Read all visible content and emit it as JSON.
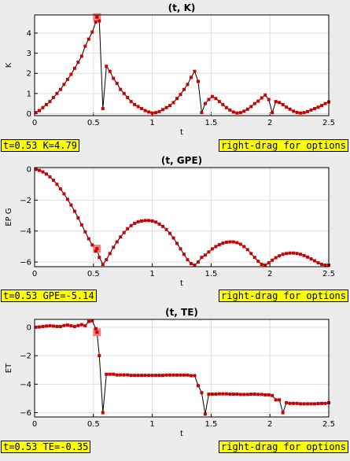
{
  "status": {
    "k_readout": "t=0.53  K=4.79",
    "gpe_readout": "t=0.53  GPE=-5.14",
    "te_readout": "t=0.53  TE=-0.35",
    "hint": "right-drag for options"
  },
  "colors": {
    "marker": "#cc0000",
    "highlight": "#f08080",
    "line": "#000000",
    "grid": "#dddddd",
    "status_bg": "#ffff00"
  },
  "chart_data": [
    {
      "type": "line",
      "title": "(t, K)",
      "xlabel": "t",
      "ylabel": "K",
      "xlim": [
        0,
        2.5
      ],
      "ylim": [
        -0.1,
        4.9
      ],
      "xticks": [
        "0",
        "0.5",
        "1",
        "1.5",
        "2",
        "2.5"
      ],
      "xtick_values": [
        0,
        0.5,
        1,
        1.5,
        2,
        2.5
      ],
      "yticks": [
        "0",
        "1",
        "2",
        "3",
        "4"
      ],
      "ytick_values": [
        0,
        1,
        2,
        3,
        4
      ],
      "grid": true,
      "highlight": {
        "x": 0.53,
        "y": 4.79
      },
      "x": [
        0.01,
        0.04,
        0.07,
        0.1,
        0.13,
        0.16,
        0.19,
        0.22,
        0.25,
        0.28,
        0.31,
        0.34,
        0.37,
        0.4,
        0.43,
        0.46,
        0.49,
        0.52,
        0.53,
        0.55,
        0.58,
        0.61,
        0.64,
        0.67,
        0.7,
        0.73,
        0.76,
        0.79,
        0.82,
        0.85,
        0.88,
        0.91,
        0.94,
        0.97,
        1.0,
        1.03,
        1.06,
        1.09,
        1.12,
        1.15,
        1.18,
        1.21,
        1.24,
        1.27,
        1.3,
        1.33,
        1.36,
        1.39,
        1.42,
        1.45,
        1.48,
        1.51,
        1.54,
        1.57,
        1.6,
        1.63,
        1.66,
        1.69,
        1.72,
        1.75,
        1.78,
        1.81,
        1.84,
        1.87,
        1.9,
        1.93,
        1.96,
        1.99,
        2.02,
        2.05,
        2.08,
        2.11,
        2.14,
        2.17,
        2.2,
        2.23,
        2.26,
        2.29,
        2.32,
        2.35,
        2.38,
        2.41,
        2.44,
        2.47,
        2.5
      ],
      "y": [
        0.05,
        0.15,
        0.3,
        0.45,
        0.6,
        0.8,
        1.0,
        1.2,
        1.45,
        1.7,
        1.95,
        2.25,
        2.55,
        2.85,
        3.35,
        3.7,
        4.05,
        4.55,
        4.79,
        4.6,
        0.25,
        2.35,
        2.1,
        1.75,
        1.5,
        1.2,
        1.0,
        0.8,
        0.6,
        0.45,
        0.35,
        0.25,
        0.15,
        0.08,
        0.03,
        0.05,
        0.1,
        0.2,
        0.3,
        0.4,
        0.55,
        0.75,
        0.95,
        1.2,
        1.45,
        1.8,
        2.1,
        1.6,
        0.05,
        0.5,
        0.7,
        0.85,
        0.75,
        0.6,
        0.45,
        0.3,
        0.18,
        0.08,
        0.03,
        0.05,
        0.12,
        0.22,
        0.35,
        0.5,
        0.62,
        0.78,
        0.92,
        0.7,
        0.05,
        0.6,
        0.55,
        0.45,
        0.32,
        0.22,
        0.12,
        0.06,
        0.03,
        0.05,
        0.1,
        0.18,
        0.25,
        0.32,
        0.4,
        0.5,
        0.58
      ]
    },
    {
      "type": "line",
      "title": "(t, GPE)",
      "xlabel": "t",
      "ylabel": "EP G",
      "xlim": [
        0,
        2.5
      ],
      "ylim": [
        -6.3,
        0.1
      ],
      "xticks": [
        "0",
        "0.5",
        "1",
        "1.5",
        "2",
        "2.5"
      ],
      "xtick_values": [
        0,
        0.5,
        1,
        1.5,
        2,
        2.5
      ],
      "yticks": [
        "0",
        "−2",
        "−4",
        "−6"
      ],
      "ytick_values": [
        0,
        -2,
        -4,
        -6
      ],
      "grid": true,
      "highlight": {
        "x": 0.53,
        "y": -5.14
      },
      "x": [
        0.01,
        0.04,
        0.07,
        0.1,
        0.13,
        0.16,
        0.19,
        0.22,
        0.25,
        0.28,
        0.31,
        0.34,
        0.37,
        0.4,
        0.43,
        0.46,
        0.49,
        0.52,
        0.53,
        0.55,
        0.58,
        0.61,
        0.64,
        0.67,
        0.7,
        0.73,
        0.76,
        0.79,
        0.82,
        0.85,
        0.88,
        0.91,
        0.94,
        0.97,
        1.0,
        1.03,
        1.06,
        1.09,
        1.12,
        1.15,
        1.18,
        1.21,
        1.24,
        1.27,
        1.3,
        1.33,
        1.36,
        1.39,
        1.42,
        1.45,
        1.48,
        1.51,
        1.54,
        1.57,
        1.6,
        1.63,
        1.66,
        1.69,
        1.72,
        1.75,
        1.78,
        1.81,
        1.84,
        1.87,
        1.9,
        1.93,
        1.96,
        1.99,
        2.02,
        2.05,
        2.08,
        2.11,
        2.14,
        2.17,
        2.2,
        2.23,
        2.26,
        2.29,
        2.32,
        2.35,
        2.38,
        2.41,
        2.44,
        2.47,
        2.5
      ],
      "y": [
        -0.02,
        -0.08,
        -0.18,
        -0.32,
        -0.5,
        -0.72,
        -0.98,
        -1.28,
        -1.6,
        -1.95,
        -2.32,
        -2.72,
        -3.15,
        -3.6,
        -4.05,
        -4.5,
        -4.9,
        -5.3,
        -5.14,
        -5.7,
        -6.15,
        -5.85,
        -5.45,
        -5.05,
        -4.7,
        -4.38,
        -4.1,
        -3.85,
        -3.65,
        -3.5,
        -3.4,
        -3.35,
        -3.32,
        -3.32,
        -3.35,
        -3.42,
        -3.55,
        -3.7,
        -3.9,
        -4.15,
        -4.45,
        -4.8,
        -5.15,
        -5.5,
        -5.85,
        -6.1,
        -6.2,
        -6.0,
        -5.7,
        -5.55,
        -5.35,
        -5.15,
        -5.0,
        -4.88,
        -4.78,
        -4.72,
        -4.7,
        -4.7,
        -4.75,
        -4.85,
        -5.0,
        -5.2,
        -5.45,
        -5.7,
        -5.95,
        -6.15,
        -6.2,
        -6.05,
        -5.88,
        -5.72,
        -5.6,
        -5.5,
        -5.45,
        -5.42,
        -5.42,
        -5.45,
        -5.5,
        -5.58,
        -5.68,
        -5.8,
        -5.92,
        -6.05,
        -6.15,
        -6.2,
        -6.2
      ],
      "note_unused": ""
    },
    {
      "type": "line",
      "title": "(t, TE)",
      "xlabel": "t",
      "ylabel": "ET",
      "xlim": [
        0,
        2.5
      ],
      "ylim": [
        -6.3,
        0.55
      ],
      "xticks": [
        "0",
        "0.5",
        "1",
        "1.5",
        "2",
        "2.5"
      ],
      "xtick_values": [
        0,
        0.5,
        1,
        1.5,
        2,
        2.5
      ],
      "yticks": [
        "0",
        "−2",
        "−4",
        "−6"
      ],
      "ytick_values": [
        0,
        -2,
        -4,
        -6
      ],
      "grid": true,
      "highlight": {
        "x": 0.53,
        "y": -0.35
      },
      "x": [
        0.01,
        0.04,
        0.07,
        0.1,
        0.13,
        0.16,
        0.19,
        0.22,
        0.25,
        0.28,
        0.31,
        0.34,
        0.37,
        0.4,
        0.43,
        0.46,
        0.49,
        0.52,
        0.53,
        0.55,
        0.58,
        0.61,
        0.64,
        0.67,
        0.7,
        0.73,
        0.76,
        0.79,
        0.82,
        0.85,
        0.88,
        0.91,
        0.94,
        0.97,
        1.0,
        1.03,
        1.06,
        1.09,
        1.12,
        1.15,
        1.18,
        1.21,
        1.24,
        1.27,
        1.3,
        1.33,
        1.36,
        1.39,
        1.42,
        1.45,
        1.48,
        1.51,
        1.54,
        1.57,
        1.6,
        1.63,
        1.66,
        1.69,
        1.72,
        1.75,
        1.78,
        1.81,
        1.84,
        1.87,
        1.9,
        1.93,
        1.96,
        1.99,
        2.02,
        2.05,
        2.08,
        2.11,
        2.14,
        2.17,
        2.2,
        2.23,
        2.26,
        2.29,
        2.32,
        2.35,
        2.38,
        2.41,
        2.44,
        2.47,
        2.5
      ],
      "y": [
        0.0,
        0.02,
        0.05,
        0.08,
        0.1,
        0.08,
        0.05,
        0.05,
        0.12,
        0.15,
        0.1,
        0.05,
        0.12,
        0.18,
        0.1,
        0.4,
        0.45,
        -0.1,
        -0.35,
        -2.0,
        -6.0,
        -3.3,
        -3.3,
        -3.3,
        -3.35,
        -3.35,
        -3.35,
        -3.35,
        -3.38,
        -3.38,
        -3.38,
        -3.38,
        -3.38,
        -3.38,
        -3.38,
        -3.38,
        -3.38,
        -3.38,
        -3.36,
        -3.36,
        -3.36,
        -3.36,
        -3.36,
        -3.36,
        -3.36,
        -3.4,
        -3.4,
        -4.1,
        -4.6,
        -6.1,
        -4.7,
        -4.7,
        -4.7,
        -4.68,
        -4.68,
        -4.68,
        -4.7,
        -4.7,
        -4.7,
        -4.72,
        -4.72,
        -4.72,
        -4.7,
        -4.7,
        -4.72,
        -4.72,
        -4.75,
        -4.75,
        -4.8,
        -5.1,
        -5.1,
        -6.0,
        -5.3,
        -5.35,
        -5.35,
        -5.35,
        -5.38,
        -5.38,
        -5.38,
        -5.38,
        -5.38,
        -5.36,
        -5.35,
        -5.35,
        -5.3
      ]
    }
  ]
}
